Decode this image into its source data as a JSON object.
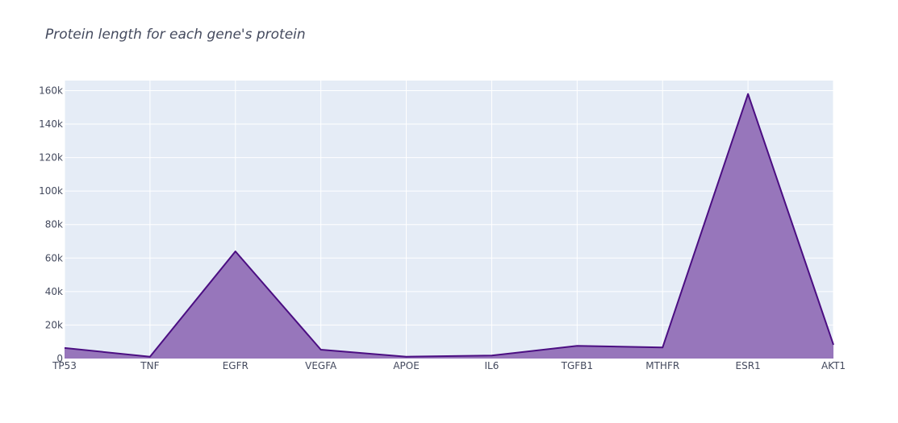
{
  "chart_data": {
    "type": "area",
    "title": "Protein length for each gene's protein",
    "xlabel": "",
    "ylabel": "",
    "categories": [
      "TP53",
      "TNF",
      "EGFR",
      "VEGFA",
      "APOE",
      "IL6",
      "TGFB1",
      "MTHFR",
      "ESR1",
      "AKT1"
    ],
    "values": [
      6300,
      1100,
      64000,
      5300,
      1100,
      1800,
      7600,
      6600,
      158000,
      8200
    ],
    "ylim": [
      0,
      166000
    ],
    "yticks": [
      0,
      20000,
      40000,
      60000,
      80000,
      100000,
      120000,
      140000,
      160000
    ],
    "ytick_labels": [
      "0",
      "20k",
      "40k",
      "60k",
      "80k",
      "100k",
      "120k",
      "140k",
      "160k"
    ],
    "grid": true,
    "colors": {
      "line": "#4b0e82",
      "fill": "#9776bb",
      "plot_bg": "#e5ecf6",
      "grid": "#ffffff"
    }
  }
}
